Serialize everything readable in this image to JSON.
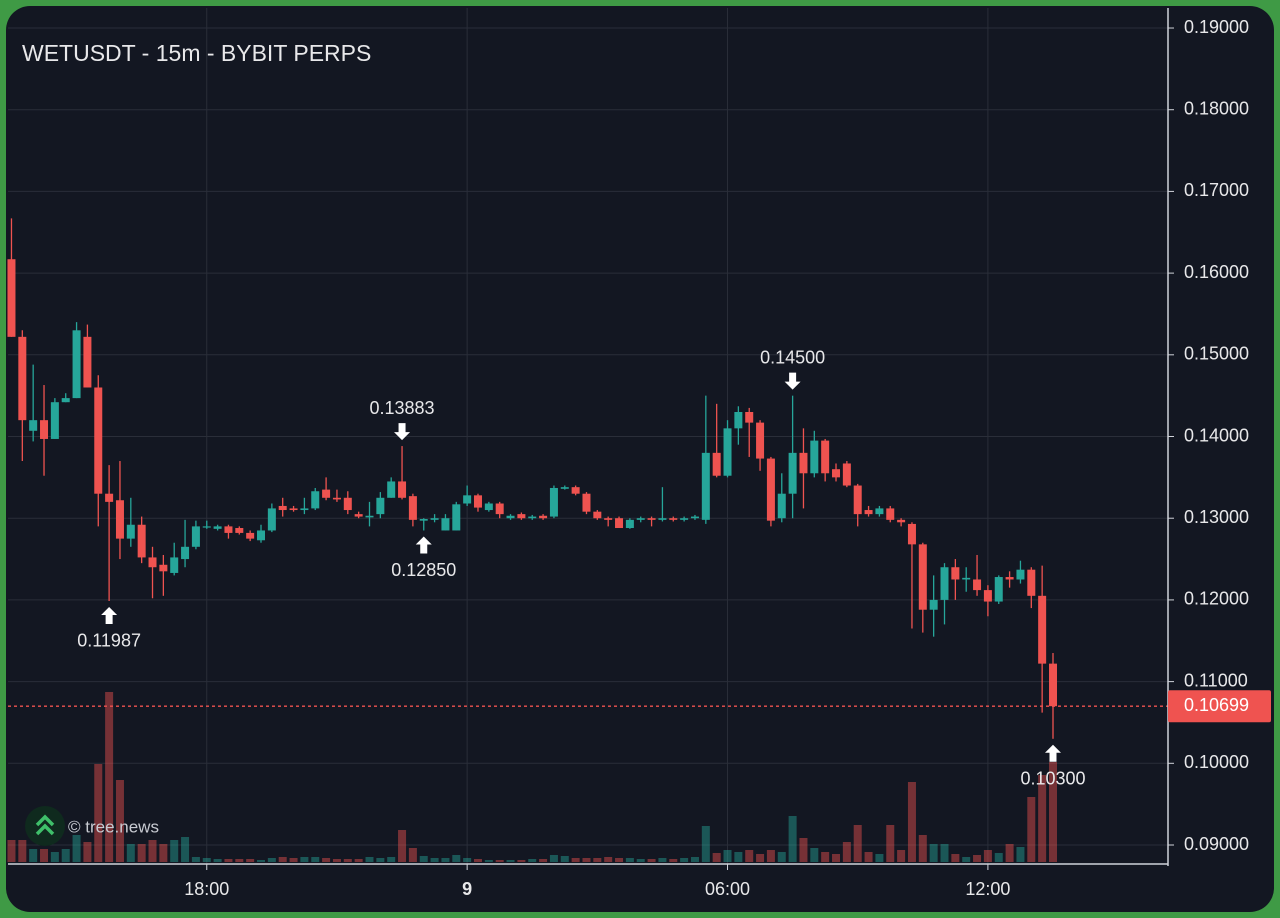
{
  "chart_data": {
    "type": "candlestick",
    "title": "WETUSDT - 15m - BYBIT PERPS",
    "watermark": "© tree.news",
    "up_color": "#26a69a",
    "down_color": "#ef5350",
    "grid": true,
    "x": [
      13.5,
      13.75,
      14,
      14.25,
      14.5,
      14.75,
      15,
      15.25,
      15.5,
      15.75,
      16,
      16.25,
      16.5,
      16.75,
      17,
      17.25,
      17.5,
      17.75,
      18,
      18.25,
      18.5,
      18.75,
      19,
      19.25,
      19.5,
      19.75,
      20,
      20.25,
      20.5,
      20.75,
      21,
      21.25,
      21.5,
      21.75,
      22,
      22.25,
      22.5,
      22.75,
      23,
      23.25,
      23.5,
      23.75,
      24,
      24.25,
      24.5,
      24.75,
      25,
      25.25,
      25.5,
      25.75,
      26,
      26.25,
      26.5,
      26.75,
      27,
      27.25,
      27.5,
      27.75,
      28,
      28.25,
      28.5,
      28.75,
      29,
      29.25,
      29.5,
      29.75,
      30,
      30.25,
      30.5,
      30.75,
      31,
      31.25,
      31.5,
      31.75,
      32,
      32.25,
      32.5,
      32.75,
      33,
      33.25,
      33.5,
      33.75,
      34,
      34.25,
      34.5,
      34.75,
      35,
      35.25,
      35.5,
      35.75,
      36,
      36.25,
      36.5,
      36.75,
      37,
      37.25,
      37.5
    ],
    "open": [
      0.1617,
      0.1522,
      0.1407,
      0.142,
      0.1397,
      0.1442,
      0.1447,
      0.1522,
      0.146,
      0.133,
      0.1322,
      0.1275,
      0.1292,
      0.1252,
      0.1243,
      0.1233,
      0.125,
      0.1265,
      0.1289,
      0.1287,
      0.129,
      0.1288,
      0.1282,
      0.1273,
      0.1285,
      0.1315,
      0.1312,
      0.131,
      0.1312,
      0.1335,
      0.1325,
      0.1325,
      0.1305,
      0.1301,
      0.1305,
      0.1325,
      0.1345,
      0.1327,
      0.1297,
      0.1298,
      0.1285,
      0.1285,
      0.1318,
      0.1328,
      0.131,
      0.1318,
      0.13,
      0.1305,
      0.13,
      0.1303,
      0.1302,
      0.1336,
      0.1338,
      0.133,
      0.1308,
      0.13,
      0.13,
      0.1288,
      0.1298,
      0.13,
      0.1298,
      0.13,
      0.1298,
      0.13,
      0.1298,
      0.138,
      0.1352,
      0.141,
      0.143,
      0.1417,
      0.1373,
      0.13,
      0.133,
      0.138,
      0.1355,
      0.1395,
      0.136,
      0.1367,
      0.134,
      0.131,
      0.1305,
      0.1312,
      0.1298,
      0.1293,
      0.1268,
      0.1188,
      0.12,
      0.124,
      0.1225,
      0.1225,
      0.1212,
      0.1198,
      0.1228,
      0.1225,
      0.1237,
      0.1205,
      0.1122
    ],
    "high": [
      0.1667,
      0.153,
      0.1488,
      0.1463,
      0.1447,
      0.1453,
      0.154,
      0.1537,
      0.1475,
      0.1365,
      0.137,
      0.1325,
      0.1302,
      0.1265,
      0.1255,
      0.127,
      0.1298,
      0.1297,
      0.1297,
      0.1292,
      0.1292,
      0.129,
      0.1285,
      0.1292,
      0.1318,
      0.1325,
      0.1315,
      0.1325,
      0.1337,
      0.135,
      0.1335,
      0.1333,
      0.1308,
      0.132,
      0.1332,
      0.135,
      0.13883,
      0.133,
      0.13,
      0.1305,
      0.1305,
      0.132,
      0.134,
      0.133,
      0.132,
      0.132,
      0.1305,
      0.1307,
      0.1304,
      0.1305,
      0.134,
      0.134,
      0.134,
      0.1332,
      0.131,
      0.1302,
      0.1302,
      0.13,
      0.1302,
      0.1302,
      0.1338,
      0.1302,
      0.1302,
      0.1304,
      0.145,
      0.144,
      0.142,
      0.1437,
      0.1435,
      0.142,
      0.1375,
      0.1355,
      0.145,
      0.141,
      0.1407,
      0.1397,
      0.1367,
      0.137,
      0.1342,
      0.1315,
      0.1315,
      0.1315,
      0.13,
      0.1295,
      0.127,
      0.123,
      0.1245,
      0.125,
      0.124,
      0.1255,
      0.1218,
      0.123,
      0.1235,
      0.1248,
      0.124,
      0.1242,
      0.1135
    ],
    "low": [
      0.1522,
      0.137,
      0.1394,
      0.1352,
      0.1397,
      0.1442,
      0.1447,
      0.146,
      0.129,
      0.11987,
      0.125,
      0.1265,
      0.1245,
      0.1202,
      0.1205,
      0.123,
      0.124,
      0.1262,
      0.1287,
      0.1285,
      0.1275,
      0.128,
      0.1272,
      0.127,
      0.1283,
      0.1302,
      0.1308,
      0.1305,
      0.131,
      0.1322,
      0.132,
      0.1305,
      0.13,
      0.129,
      0.13,
      0.1325,
      0.1323,
      0.129,
      0.1285,
      0.1295,
      0.1285,
      0.1285,
      0.1315,
      0.1308,
      0.1308,
      0.13,
      0.1298,
      0.1298,
      0.1298,
      0.1298,
      0.13,
      0.1335,
      0.1328,
      0.1305,
      0.1298,
      0.129,
      0.1288,
      0.1287,
      0.1295,
      0.129,
      0.1296,
      0.1296,
      0.1296,
      0.1298,
      0.1293,
      0.135,
      0.135,
      0.139,
      0.1375,
      0.1358,
      0.129,
      0.1295,
      0.13,
      0.1312,
      0.135,
      0.1345,
      0.1345,
      0.1338,
      0.129,
      0.1302,
      0.1302,
      0.1295,
      0.129,
      0.1165,
      0.116,
      0.1155,
      0.117,
      0.12,
      0.121,
      0.1205,
      0.118,
      0.1195,
      0.1215,
      0.122,
      0.119,
      0.1062,
      0.103
    ],
    "close": [
      0.1522,
      0.142,
      0.142,
      0.1397,
      0.1442,
      0.1447,
      0.153,
      0.146,
      0.133,
      0.132,
      0.1275,
      0.1292,
      0.1252,
      0.124,
      0.1235,
      0.1252,
      0.1265,
      0.129,
      0.129,
      0.129,
      0.1282,
      0.1282,
      0.1275,
      0.1285,
      0.1312,
      0.131,
      0.131,
      0.1312,
      0.1333,
      0.1325,
      0.1323,
      0.131,
      0.1302,
      0.1303,
      0.1325,
      0.1345,
      0.1325,
      0.1298,
      0.1299,
      0.13,
      0.13,
      0.1317,
      0.1328,
      0.1313,
      0.1318,
      0.1305,
      0.1303,
      0.13,
      0.1302,
      0.13,
      0.1337,
      0.1338,
      0.133,
      0.1308,
      0.13,
      0.1298,
      0.1288,
      0.1298,
      0.13,
      0.1298,
      0.13,
      0.1298,
      0.13,
      0.1302,
      0.138,
      0.1352,
      0.141,
      0.143,
      0.1417,
      0.1373,
      0.1297,
      0.133,
      0.138,
      0.1355,
      0.1395,
      0.1355,
      0.135,
      0.134,
      0.1305,
      0.1305,
      0.1312,
      0.1298,
      0.1295,
      0.1268,
      0.1188,
      0.12,
      0.124,
      0.1225,
      0.1227,
      0.1212,
      0.1198,
      0.1228,
      0.1225,
      0.1237,
      0.1205,
      0.1122,
      0.10699
    ],
    "volume": [
      22,
      22,
      13,
      13,
      10,
      13,
      27,
      20,
      98,
      170,
      82,
      18,
      18,
      22,
      18,
      22,
      25,
      5,
      4,
      3,
      3,
      3,
      3,
      2,
      4,
      5,
      4,
      5,
      5,
      4,
      3,
      3,
      3,
      5,
      4,
      5,
      32,
      14,
      6,
      4,
      4,
      7,
      4,
      3,
      2,
      2,
      2,
      2,
      3,
      3,
      7,
      6,
      4,
      4,
      4,
      5,
      4,
      4,
      3,
      3,
      4,
      3,
      4,
      5,
      36,
      9,
      12,
      10,
      12,
      8,
      12,
      10,
      46,
      24,
      14,
      10,
      8,
      20,
      37,
      10,
      8,
      37,
      12,
      80,
      27,
      18,
      18,
      8,
      5,
      7,
      12,
      9,
      18,
      15,
      65,
      87,
      100
    ],
    "xlim": [
      13.42,
      40.15
    ],
    "ylim": [
      0.08792,
      0.19245
    ],
    "xticks": [
      {
        "value": 18,
        "label": "18:00"
      },
      {
        "value": 24,
        "label": "9"
      },
      {
        "value": 30,
        "label": "06:00"
      },
      {
        "value": 36,
        "label": "12:00"
      }
    ],
    "yticks": [
      {
        "value": 0.09,
        "label": "0.09000"
      },
      {
        "value": 0.1,
        "label": "0.10000"
      },
      {
        "value": 0.11,
        "label": "0.11000"
      },
      {
        "value": 0.12,
        "label": "0.12000"
      },
      {
        "value": 0.13,
        "label": "0.13000"
      },
      {
        "value": 0.14,
        "label": "0.14000"
      },
      {
        "value": 0.15,
        "label": "0.15000"
      },
      {
        "value": 0.16,
        "label": "0.16000"
      },
      {
        "value": 0.17,
        "label": "0.17000"
      },
      {
        "value": 0.18,
        "label": "0.18000"
      },
      {
        "value": 0.19,
        "label": "0.19000"
      }
    ],
    "last_price": 0.10699,
    "annotations": [
      {
        "x": 15.75,
        "value": 0.11987,
        "position": "below"
      },
      {
        "x": 22.5,
        "value": 0.13883,
        "position": "above"
      },
      {
        "x": 23,
        "value": 0.1285,
        "label": "0.12850",
        "position": "below"
      },
      {
        "x": 31.5,
        "value": 0.145,
        "label": "0.14500",
        "position": "above"
      },
      {
        "x": 37.5,
        "value": 0.103,
        "label": "0.10300",
        "position": "below"
      }
    ]
  }
}
